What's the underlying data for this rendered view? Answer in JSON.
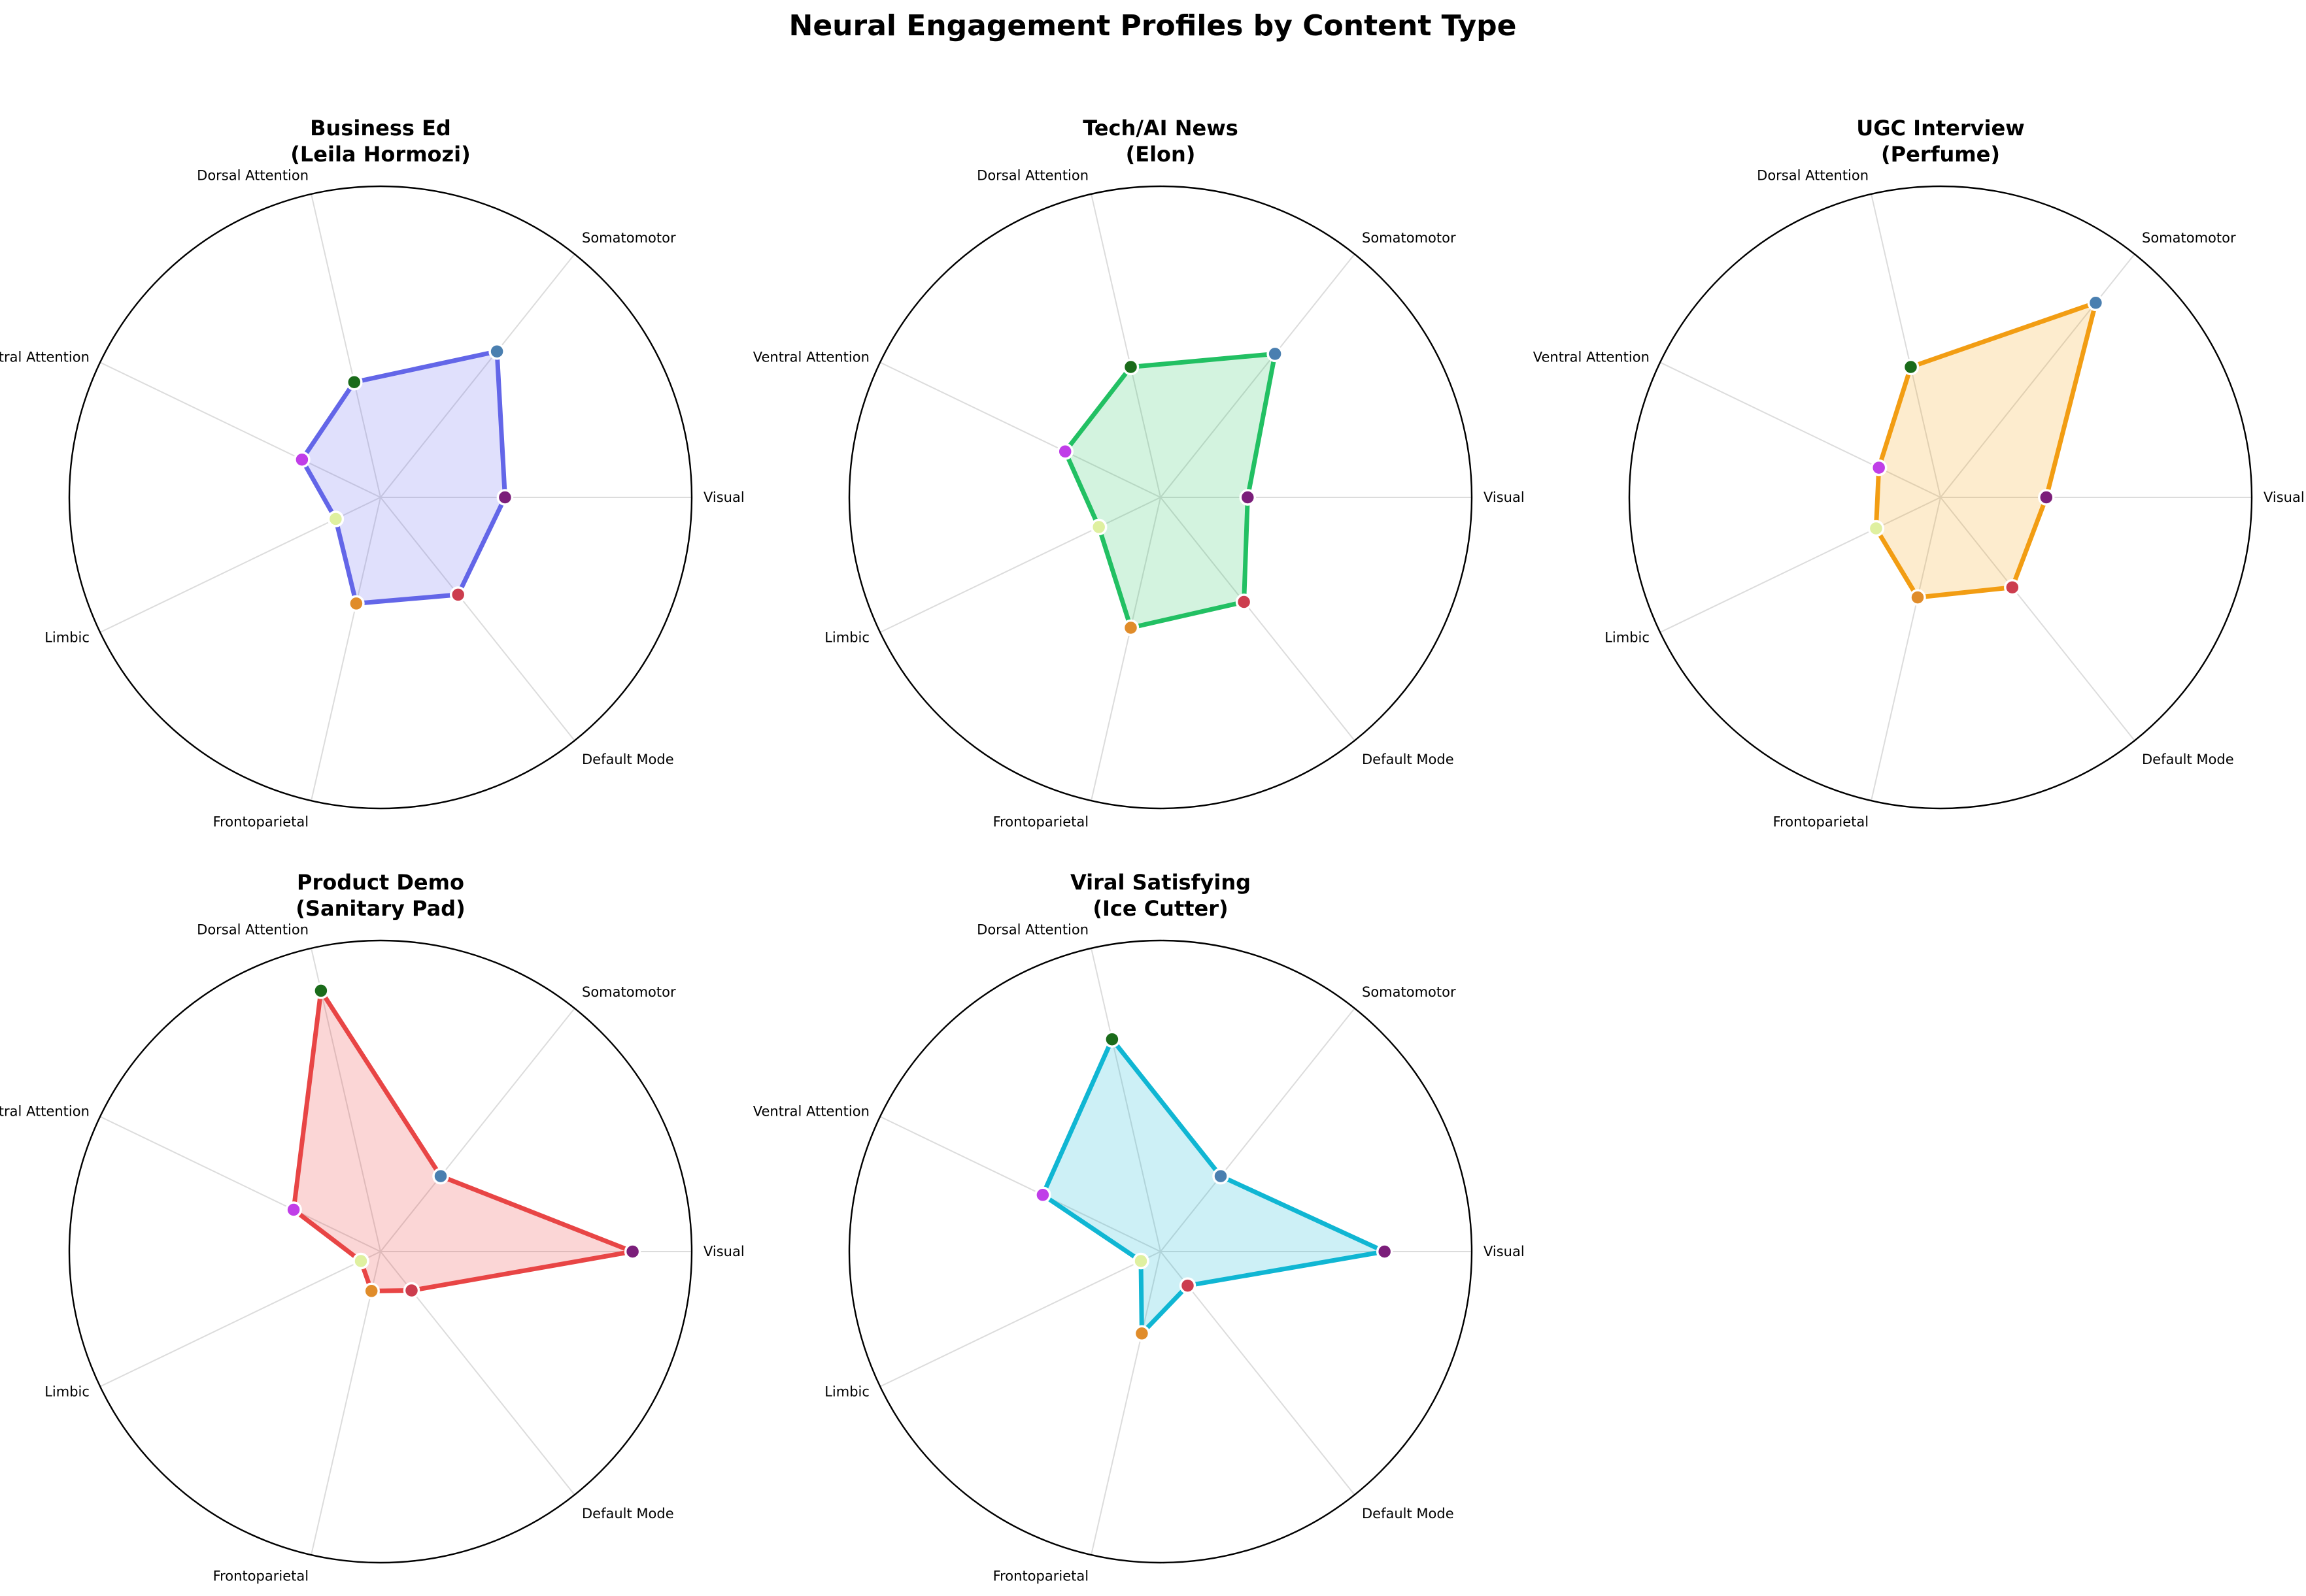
{
  "title": "Neural Engagement Profiles by Content Type",
  "chart_data": {
    "type": "radar",
    "axes": [
      "Visual",
      "Somatomotor",
      "Dorsal Attention",
      "Ventral Attention",
      "Limbic",
      "Frontoparietal",
      "Default Mode"
    ],
    "axis_colors": [
      "#7b1e7a",
      "#4a7fb0",
      "#1a6b1a",
      "#c03ee8",
      "#dff0a0",
      "#e08c2a",
      "#cc3d4e"
    ],
    "rlim": [
      0,
      1
    ],
    "grid": true,
    "series": [
      {
        "name": "Business Ed",
        "subtitle": "(Leila Hormozi)",
        "color": "#6366e8",
        "fill": "rgba(99,102,241,0.2)",
        "values": [
          0.4,
          0.6,
          0.38,
          0.28,
          0.16,
          0.35,
          0.4
        ]
      },
      {
        "name": "Tech/AI News",
        "subtitle": "(Elon)",
        "color": "#22c063",
        "fill": "rgba(34,197,94,0.2)",
        "values": [
          0.28,
          0.59,
          0.43,
          0.34,
          0.22,
          0.43,
          0.43
        ]
      },
      {
        "name": "UGC Interview",
        "subtitle": "(Perfume)",
        "color": "#f29d13",
        "fill": "rgba(245,158,11,0.2)",
        "values": [
          0.34,
          0.8,
          0.43,
          0.22,
          0.23,
          0.33,
          0.37
        ]
      },
      {
        "name": "Product Demo",
        "subtitle": "(Sanitary Pad)",
        "color": "#e84545",
        "fill": "rgba(239,68,68,0.22)",
        "values": [
          0.81,
          0.31,
          0.86,
          0.31,
          0.07,
          0.13,
          0.16
        ]
      },
      {
        "name": "Viral Satisfying",
        "subtitle": "(Ice Cutter)",
        "color": "#10b6d3",
        "fill": "rgba(6,182,212,0.2)",
        "values": [
          0.72,
          0.31,
          0.7,
          0.42,
          0.07,
          0.27,
          0.14
        ]
      }
    ]
  }
}
